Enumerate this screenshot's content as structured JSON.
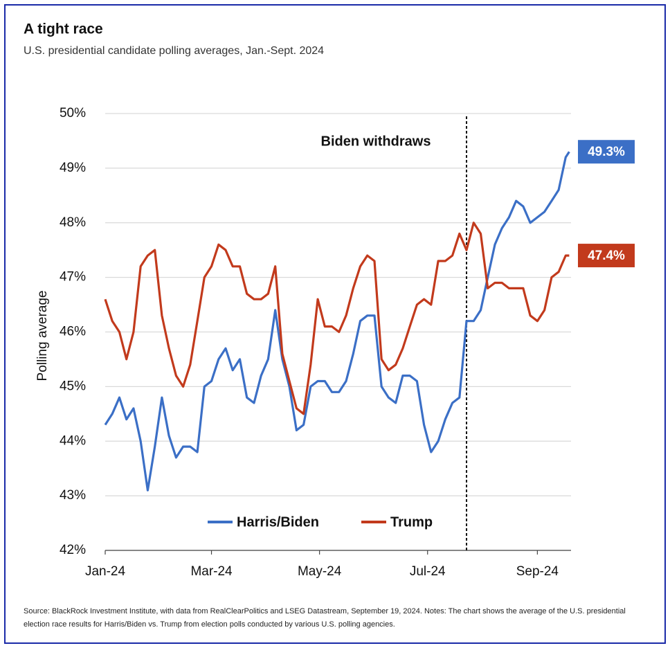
{
  "chart_data": {
    "type": "line",
    "title": "A tight race",
    "subtitle": "U.S. presidential candidate polling averages, Jan.-Sept. 2024",
    "y_label": "Polling average",
    "source": "Source: BlackRock Investment Institute, with data from RealClearPolitics and LSEG Datastream, September 19, 2024. Notes: The chart shows the average of the U.S. presidential election race results for Harris/Biden vs. Trump from election polls conducted by various U.S. polling agencies.",
    "annotation": {
      "text": "Biden withdraws",
      "x": 204
    },
    "x": [
      0,
      4,
      8,
      12,
      16,
      20,
      24,
      28,
      32,
      36,
      40,
      44,
      48,
      52,
      56,
      60,
      64,
      68,
      72,
      76,
      80,
      84,
      88,
      92,
      96,
      100,
      104,
      108,
      112,
      116,
      120,
      124,
      128,
      132,
      136,
      140,
      144,
      148,
      152,
      156,
      160,
      164,
      168,
      172,
      176,
      180,
      184,
      188,
      192,
      196,
      200,
      204,
      208,
      212,
      216,
      220,
      224,
      228,
      232,
      236,
      240,
      244,
      248,
      252,
      256,
      260,
      262
    ],
    "xlim": [
      0,
      263
    ],
    "xticks": [
      {
        "value": 0,
        "label": "Jan-24"
      },
      {
        "value": 60,
        "label": "Mar-24"
      },
      {
        "value": 121,
        "label": "May-24"
      },
      {
        "value": 182,
        "label": "Jul-24"
      },
      {
        "value": 244,
        "label": "Sep-24"
      }
    ],
    "ylim": [
      42,
      50
    ],
    "yticks": [
      {
        "value": 42,
        "label": "42%"
      },
      {
        "value": 43,
        "label": "43%"
      },
      {
        "value": 44,
        "label": "44%"
      },
      {
        "value": 45,
        "label": "45%"
      },
      {
        "value": 46,
        "label": "46%"
      },
      {
        "value": 47,
        "label": "47%"
      },
      {
        "value": 48,
        "label": "48%"
      },
      {
        "value": 49,
        "label": "49%"
      },
      {
        "value": 50,
        "label": "50%"
      }
    ],
    "grid": true,
    "series": [
      {
        "name": "Harris/Biden",
        "color": "#3b6fc6",
        "end_label": "49.3%",
        "values": [
          44.3,
          44.5,
          44.8,
          44.4,
          44.6,
          44.0,
          43.1,
          43.9,
          44.8,
          44.1,
          43.7,
          43.9,
          43.9,
          43.8,
          45.0,
          45.1,
          45.5,
          45.7,
          45.3,
          45.5,
          44.8,
          44.7,
          45.2,
          45.5,
          46.4,
          45.5,
          45.0,
          44.2,
          44.3,
          45.0,
          45.1,
          45.1,
          44.9,
          44.9,
          45.1,
          45.6,
          46.2,
          46.3,
          46.3,
          45.0,
          44.8,
          44.7,
          45.2,
          45.2,
          45.1,
          44.3,
          43.8,
          44.0,
          44.4,
          44.7,
          44.8,
          46.2,
          46.2,
          46.4,
          47.0,
          47.6,
          47.9,
          48.1,
          48.4,
          48.3,
          48.0,
          48.1,
          48.2,
          48.4,
          48.6,
          49.2,
          49.3
        ]
      },
      {
        "name": "Trump",
        "color": "#c23a1c",
        "end_label": "47.4%",
        "values": [
          46.6,
          46.2,
          46.0,
          45.5,
          46.0,
          47.2,
          47.4,
          47.5,
          46.3,
          45.7,
          45.2,
          45.0,
          45.4,
          46.2,
          47.0,
          47.2,
          47.6,
          47.5,
          47.2,
          47.2,
          46.7,
          46.6,
          46.6,
          46.7,
          47.2,
          45.6,
          45.1,
          44.6,
          44.5,
          45.4,
          46.6,
          46.1,
          46.1,
          46.0,
          46.3,
          46.8,
          47.2,
          47.4,
          47.3,
          45.5,
          45.3,
          45.4,
          45.7,
          46.1,
          46.5,
          46.6,
          46.5,
          47.3,
          47.3,
          47.4,
          47.8,
          47.5,
          48.0,
          47.8,
          46.8,
          46.9,
          46.9,
          46.8,
          46.8,
          46.8,
          46.3,
          46.2,
          46.4,
          47.0,
          47.1,
          47.4,
          47.4
        ]
      }
    ]
  }
}
